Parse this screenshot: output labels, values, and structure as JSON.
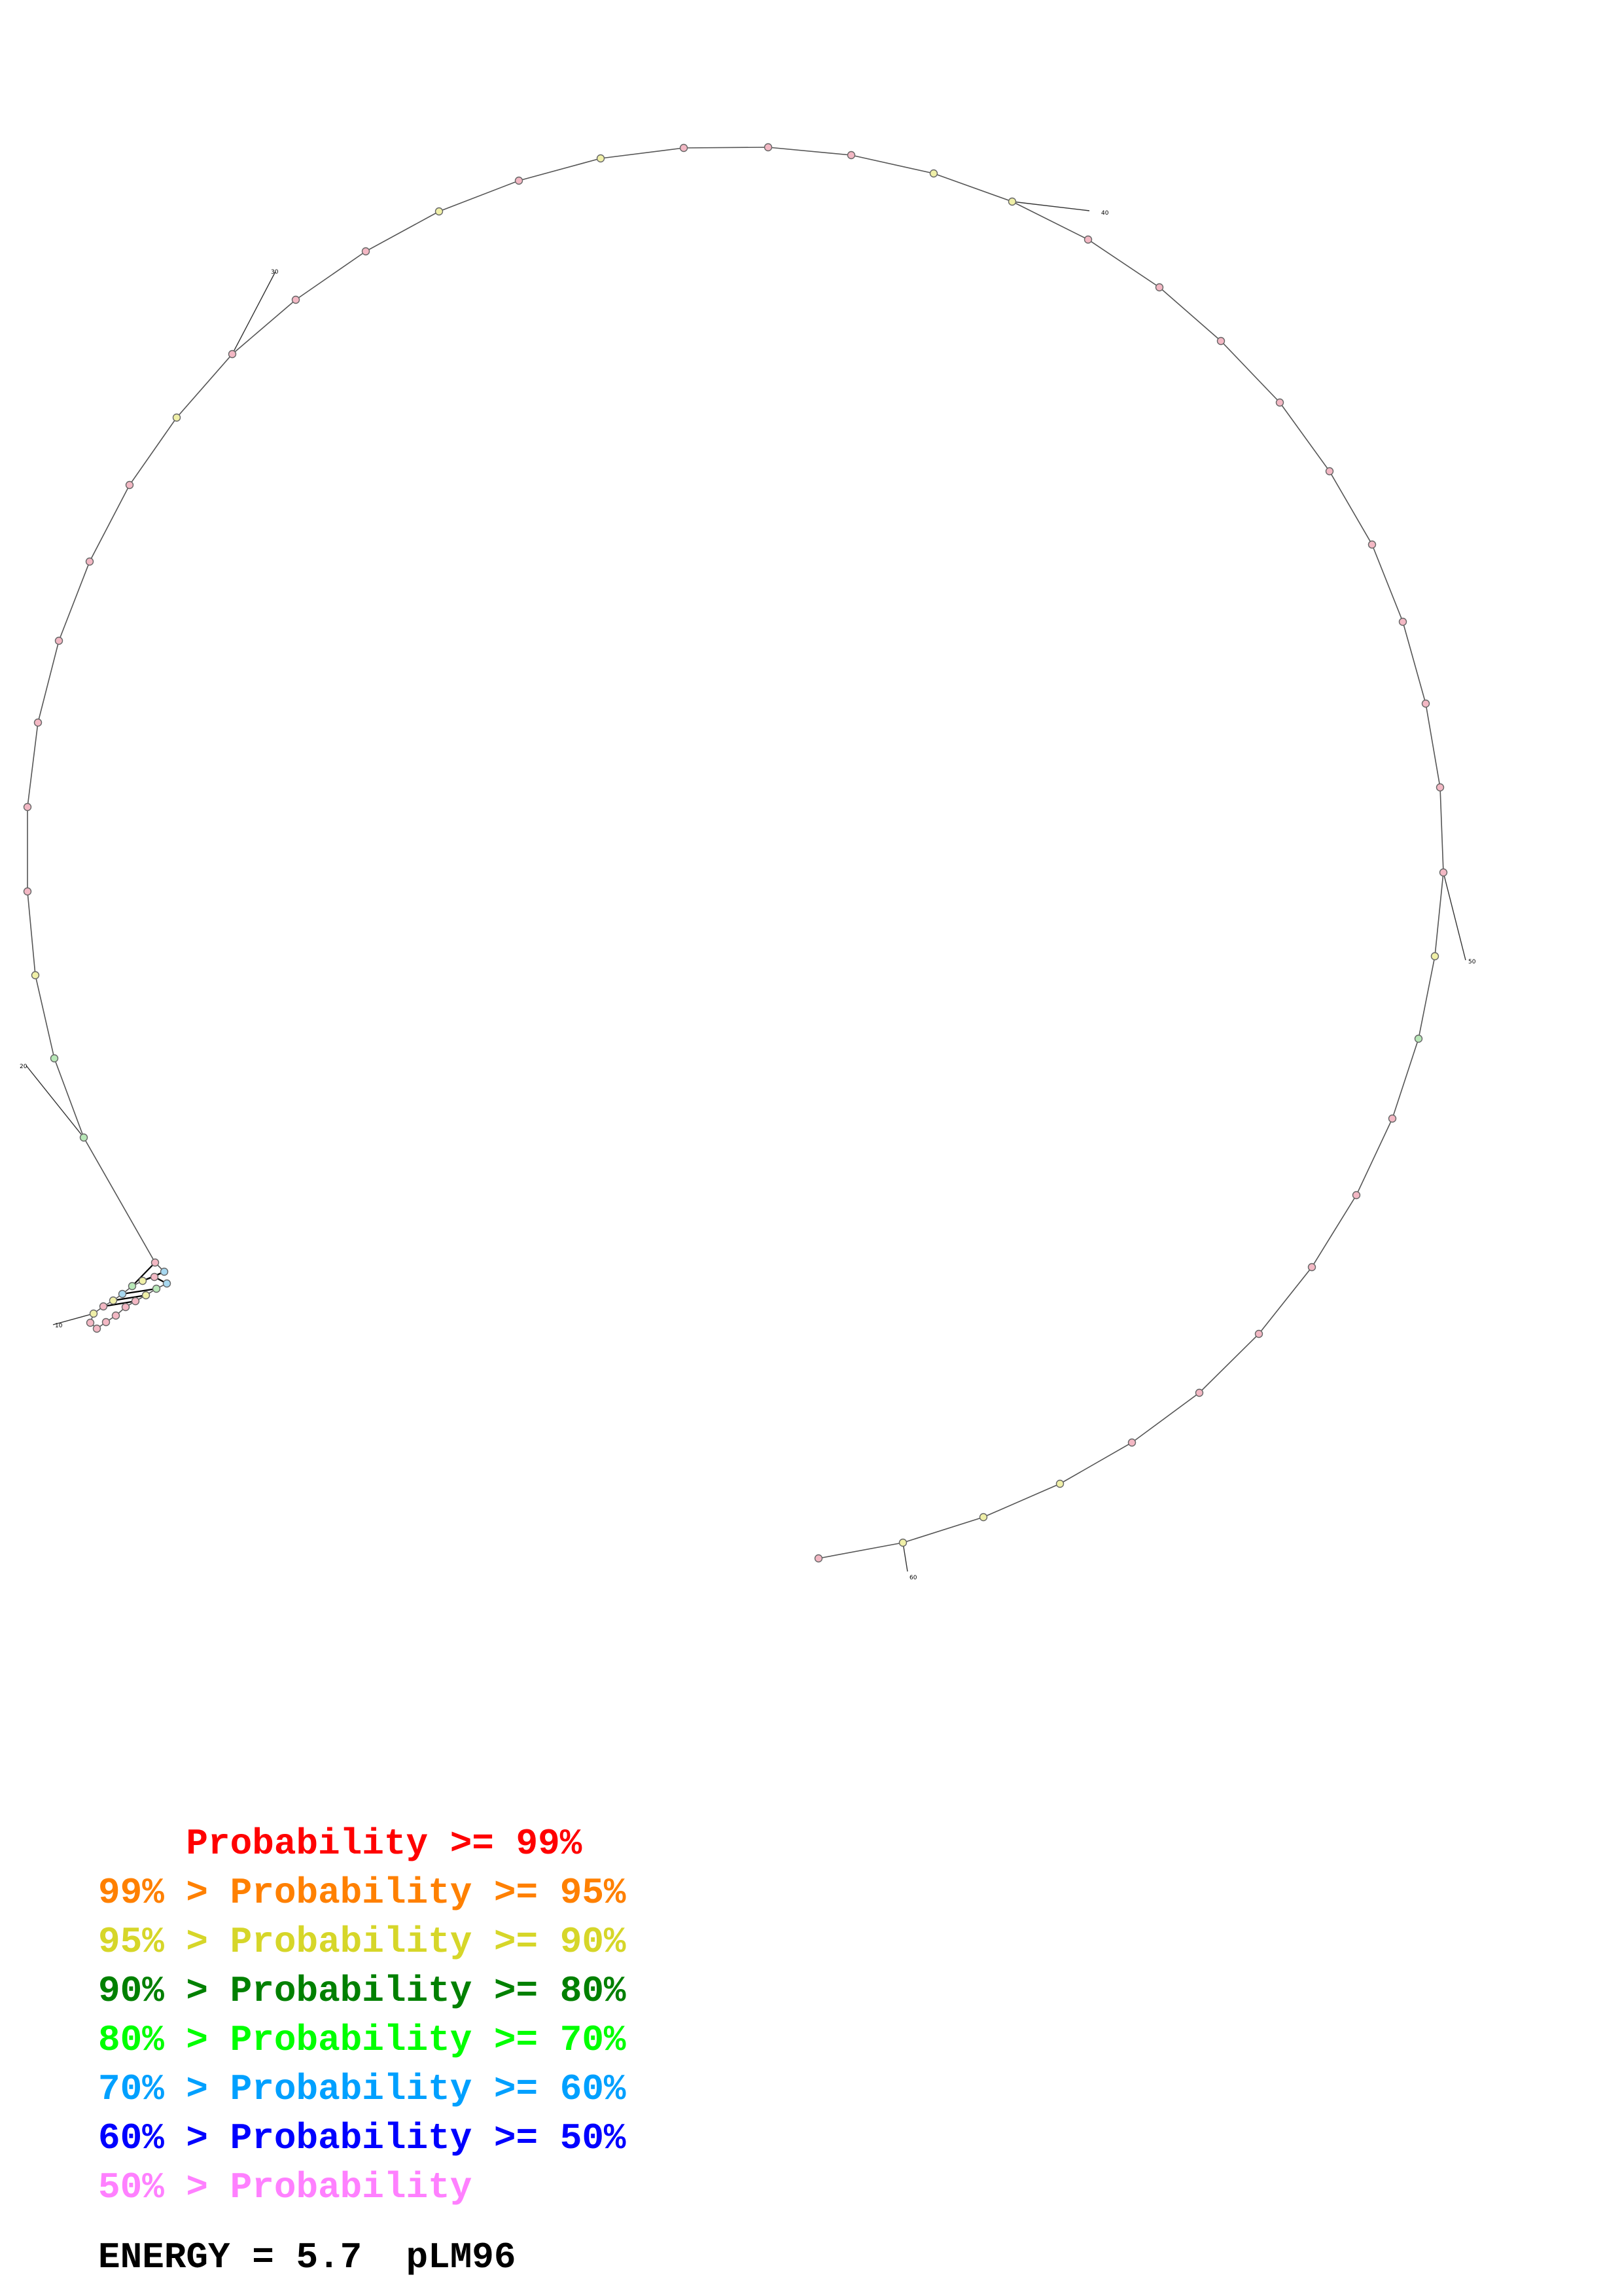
{
  "diagram": {
    "nucleotide_count": 62,
    "position_labels": [
      "10",
      "20",
      "30",
      "40",
      "50",
      "60"
    ]
  },
  "legend": [
    {
      "prefix": "    ",
      "text": "Probability >= 99%",
      "color": "#ff0000"
    },
    {
      "prefix": "99% > ",
      "text": "Probability >= 95%",
      "color": "#ff8000"
    },
    {
      "prefix": "95% > ",
      "text": "Probability >= 90%",
      "color": "#d6d629"
    },
    {
      "prefix": "90% > ",
      "text": "Probability >= 80%",
      "color": "#008000"
    },
    {
      "prefix": "80% > ",
      "text": "Probability >= 70%",
      "color": "#00ff00"
    },
    {
      "prefix": "70% > ",
      "text": "Probability >= 60%",
      "color": "#00a0ff"
    },
    {
      "prefix": "60% > ",
      "text": "Probability >= 50%",
      "color": "#0000ff"
    },
    {
      "prefix": "50% > ",
      "text": "Probability",
      "color": "#ff80ff"
    }
  ],
  "footer": {
    "energy": "ENERGY = 5.7",
    "name": "pLM96"
  },
  "node_colors": {
    "pink": "#f3b8c4",
    "yellow": "#f0f0a8",
    "green": "#b8e8b8",
    "blue": "#a8d8f0"
  }
}
